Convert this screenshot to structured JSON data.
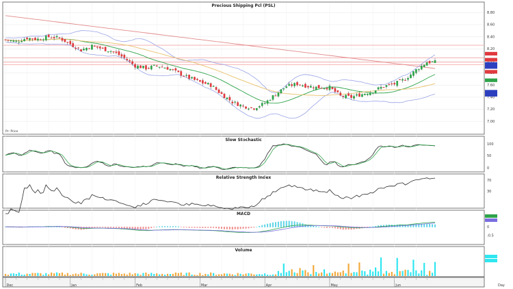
{
  "chart_data": {
    "type": "line",
    "title": "Precious Shipping Pcl (PSL)",
    "subtitle": "",
    "legend_note": "Pr: Price",
    "x_labels": [
      "Dec",
      "Jan",
      "Feb",
      "Mar",
      "Apr",
      "May",
      "Jun",
      "Day"
    ],
    "n_days": 130,
    "price": {
      "grid_on": true,
      "ylim": [
        6.9,
        8.85
      ],
      "yticks": [
        "8.80",
        "8.60",
        "8.40",
        "8.20",
        "8.00",
        "7.80",
        "7.60",
        "7.40",
        "7.20",
        "7.00"
      ],
      "anchors": [
        [
          0,
          8.35
        ],
        [
          4,
          8.32
        ],
        [
          8,
          8.38
        ],
        [
          12,
          8.36
        ],
        [
          16,
          8.4
        ],
        [
          20,
          8.38
        ],
        [
          24,
          8.28
        ],
        [
          28,
          8.18
        ],
        [
          32,
          8.25
        ],
        [
          36,
          8.2
        ],
        [
          40,
          8.15
        ],
        [
          44,
          8.05
        ],
        [
          48,
          7.92
        ],
        [
          52,
          7.88
        ],
        [
          56,
          7.92
        ],
        [
          60,
          7.88
        ],
        [
          64,
          7.8
        ],
        [
          68,
          7.72
        ],
        [
          72,
          7.65
        ],
        [
          76,
          7.6
        ],
        [
          80,
          7.45
        ],
        [
          84,
          7.32
        ],
        [
          88,
          7.25
        ],
        [
          92,
          7.22
        ],
        [
          96,
          7.3
        ],
        [
          100,
          7.45
        ],
        [
          104,
          7.58
        ],
        [
          108,
          7.62
        ],
        [
          112,
          7.58
        ],
        [
          116,
          7.56
        ],
        [
          120,
          7.56
        ],
        [
          124,
          7.42
        ],
        [
          128,
          7.4
        ],
        [
          132,
          7.45
        ],
        [
          136,
          7.5
        ],
        [
          140,
          7.58
        ],
        [
          144,
          7.62
        ],
        [
          148,
          7.7
        ],
        [
          152,
          7.85
        ],
        [
          156,
          7.98
        ]
      ],
      "horizontal_lines": [
        8.26,
        8.05,
        7.98,
        7.94
      ],
      "last_markers": [
        {
          "value": 8.12,
          "color": "#e0393e"
        },
        {
          "value": 8.02,
          "color": "#e0393e"
        },
        {
          "value": 7.95,
          "color": "#2c3fbf"
        },
        {
          "value": 7.9,
          "color": "#2c3fbf"
        },
        {
          "value": 7.82,
          "color": "#e0393e"
        },
        {
          "value": 7.68,
          "color": "#2ea34a"
        },
        {
          "value": 7.49,
          "color": "#2c3fbf"
        },
        {
          "value": 7.44,
          "color": "#2c3fbf"
        }
      ]
    },
    "stochastic": {
      "title": "Slow Stochastic",
      "yticks": [
        "100",
        "50",
        "0"
      ],
      "ylim": [
        0,
        100
      ],
      "k_color": "#2a2a2a",
      "d_color": "#2ea34a"
    },
    "rsi": {
      "title": "Relative Strength Index",
      "yticks": [
        "70",
        "30"
      ],
      "ylim": [
        20,
        80
      ],
      "color": "#2a2a2a"
    },
    "macd": {
      "title": "MACD",
      "yticks": [
        "0",
        "-0.5"
      ],
      "ylim": [
        -0.9,
        0.6
      ]
    },
    "volume": {
      "title": "Volume",
      "up_color": "#2ee6f0",
      "down_color": "#f2a93b",
      "peak_bars": [
        [
          103,
          0.55
        ],
        [
          109,
          0.35
        ],
        [
          114,
          0.48
        ],
        [
          127,
          0.55
        ],
        [
          131,
          0.6
        ],
        [
          137,
          0.38
        ],
        [
          139,
          0.82
        ],
        [
          145,
          0.8
        ],
        [
          151,
          0.72
        ],
        [
          155,
          0.58
        ],
        [
          159,
          0.62
        ]
      ]
    },
    "colors": {
      "up": "#2ea34a",
      "down": "#e0393e",
      "bb": "#9aa4e6",
      "ma_short": "#2ea34a",
      "ma_mid": "#e8c06a",
      "ma_long": "#e2898a",
      "grid": "#e6e6e6",
      "hline": "#f3a7a7"
    }
  }
}
